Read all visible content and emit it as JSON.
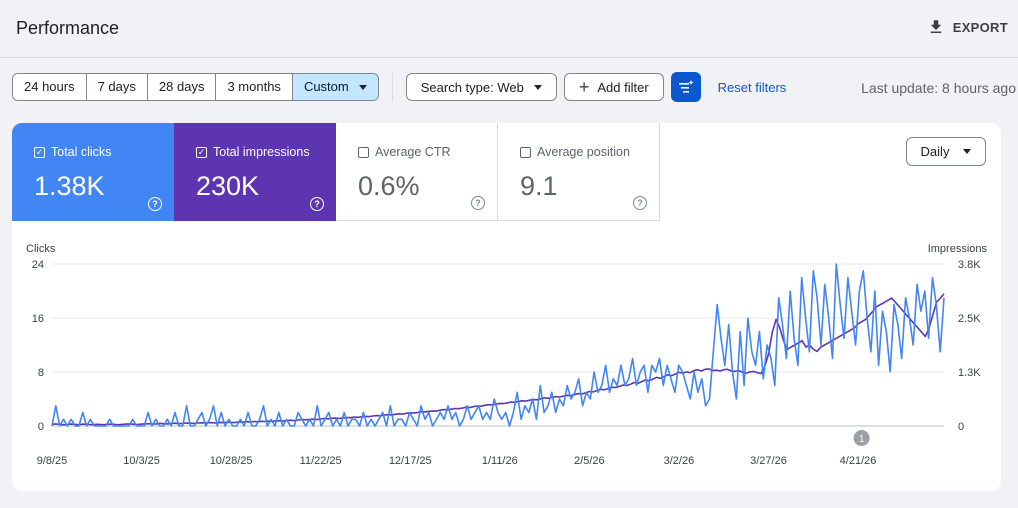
{
  "header": {
    "title": "Performance",
    "export_label": "EXPORT"
  },
  "filters": {
    "date_ranges": [
      "24 hours",
      "7 days",
      "28 days",
      "3 months"
    ],
    "custom_label": "Custom",
    "search_type_label": "Search type: Web",
    "add_filter_label": "Add filter",
    "reset_label": "Reset filters",
    "last_update": "Last update: 8 hours ago"
  },
  "metrics": {
    "clicks": {
      "label": "Total clicks",
      "value": "1.38K",
      "checked": true,
      "color": "#4285f4"
    },
    "impressions": {
      "label": "Total impressions",
      "value": "230K",
      "checked": true,
      "color": "#5e35b1"
    },
    "ctr": {
      "label": "Average CTR",
      "value": "0.6%",
      "checked": false
    },
    "position": {
      "label": "Average position",
      "value": "9.1",
      "checked": false
    }
  },
  "granularity": {
    "selected": "Daily"
  },
  "chart_data": {
    "type": "line",
    "left_axis": {
      "label": "Clicks",
      "ticks": [
        "24",
        "16",
        "8",
        "0"
      ],
      "ylim": [
        0,
        24
      ]
    },
    "right_axis": {
      "label": "Impressions",
      "ticks": [
        "3.8K",
        "2.5K",
        "1.3K",
        "0"
      ],
      "ylim": [
        0,
        3800
      ]
    },
    "x_tick_labels": [
      "9/8/25",
      "10/3/25",
      "10/28/25",
      "11/22/25",
      "12/17/25",
      "1/11/26",
      "2/5/26",
      "3/2/26",
      "3/27/26",
      "4/21/26"
    ],
    "x_range": [
      "9/8/25",
      "5/15/26"
    ],
    "annotation": {
      "label": "1",
      "date": "4/22/26"
    },
    "grid": true,
    "series": [
      {
        "name": "Total clicks",
        "axis": "left",
        "color": "#4285f4",
        "values": [
          0,
          3,
          0,
          1,
          0,
          1,
          0,
          0,
          2,
          0,
          1,
          0,
          0,
          0,
          0,
          1,
          0,
          0,
          0,
          0,
          0,
          1,
          0,
          0,
          0,
          2,
          0,
          1,
          0,
          0,
          1,
          0,
          2,
          0,
          0,
          3,
          0,
          0,
          1,
          2,
          0,
          1,
          3,
          0,
          2,
          0,
          1,
          0,
          0,
          1,
          0,
          2,
          0,
          0,
          1,
          3,
          0,
          1,
          0,
          2,
          0,
          1,
          0,
          0,
          2,
          1,
          0,
          1,
          0,
          3,
          0,
          1,
          2,
          0,
          1,
          0,
          2,
          0,
          1,
          1,
          0,
          2,
          0,
          1,
          0,
          1,
          2,
          0,
          3,
          0,
          1,
          1,
          0,
          2,
          1,
          0,
          3,
          1,
          2,
          0,
          1,
          2,
          1,
          3,
          1,
          2,
          0,
          1,
          3,
          1,
          2,
          3,
          1,
          2,
          1,
          4,
          2,
          1,
          2,
          0,
          2,
          5,
          1,
          3,
          2,
          4,
          1,
          6,
          2,
          3,
          5,
          2,
          4,
          3,
          6,
          4,
          5,
          7,
          3,
          5,
          4,
          8,
          5,
          6,
          9,
          5,
          7,
          6,
          9,
          6,
          7,
          10,
          6,
          8,
          9,
          5,
          9,
          8,
          10,
          6,
          9,
          7,
          5,
          9,
          8,
          6,
          4,
          8,
          5,
          7,
          3,
          4,
          11,
          18,
          13,
          9,
          15,
          8,
          4,
          14,
          6,
          16,
          11,
          9,
          14,
          7,
          12,
          10,
          6,
          19,
          15,
          10,
          20,
          13,
          9,
          22,
          16,
          11,
          23,
          19,
          12,
          21,
          16,
          10,
          24,
          18,
          13,
          22,
          17,
          12,
          20,
          23,
          16,
          11,
          20,
          9,
          17,
          14,
          8,
          18,
          15,
          10,
          19,
          16,
          12,
          21,
          17,
          20,
          13,
          22,
          18,
          11,
          19
        ]
      },
      {
        "name": "Total impressions",
        "axis": "right",
        "color": "#5e35b1",
        "values": [
          40,
          50,
          40,
          30,
          35,
          45,
          40,
          30,
          40,
          45,
          35,
          30,
          40,
          35,
          30,
          40,
          45,
          35,
          30,
          40,
          45,
          50,
          40,
          35,
          45,
          50,
          55,
          45,
          50,
          60,
          55,
          50,
          60,
          65,
          55,
          60,
          70,
          65,
          60,
          70,
          75,
          70,
          80,
          75,
          70,
          85,
          80,
          90,
          85,
          80,
          95,
          90,
          100,
          95,
          105,
          100,
          110,
          105,
          115,
          110,
          120,
          125,
          115,
          130,
          135,
          125,
          140,
          150,
          145,
          155,
          160,
          150,
          165,
          175,
          170,
          180,
          185,
          175,
          190,
          200,
          195,
          210,
          205,
          215,
          225,
          220,
          235,
          245,
          240,
          255,
          265,
          260,
          275,
          285,
          280,
          300,
          310,
          305,
          320,
          335,
          330,
          345,
          355,
          350,
          370,
          385,
          380,
          395,
          410,
          405,
          420,
          440,
          435,
          455,
          470,
          465,
          485,
          500,
          495,
          515,
          530,
          525,
          545,
          560,
          555,
          575,
          590,
          585,
          605,
          620,
          615,
          640,
          660,
          650,
          670,
          690,
          680,
          700,
          720,
          710,
          735,
          760,
          750,
          780,
          810,
          800,
          830,
          860,
          850,
          880,
          910,
          900,
          930,
          960,
          950,
          980,
          1020,
          1000,
          1040,
          1080,
          1060,
          1100,
          1140,
          1120,
          1160,
          1200,
          1180,
          1220,
          1260,
          1240,
          1270,
          1250,
          1300,
          1320,
          1290,
          1330,
          1340,
          1300,
          1310,
          1290,
          1320,
          1330,
          1290,
          1280,
          1300,
          1260,
          1240,
          1270,
          1280,
          1250,
          1230,
          1400,
          1700,
          2200,
          2500,
          2300,
          2000,
          1800,
          1850,
          1900,
          1950,
          2000,
          1850,
          1900,
          1800,
          1750,
          1850,
          1900,
          1950,
          2000,
          2050,
          2100,
          2150,
          2200,
          2250,
          2300,
          2400,
          2450,
          2500,
          2600,
          2700,
          2800,
          2850,
          2900,
          2950,
          3000,
          2900,
          2800,
          2700,
          2600,
          2500,
          2400,
          2300,
          2200,
          2100,
          2300,
          2600,
          2900,
          3000,
          3100
        ]
      }
    ]
  }
}
